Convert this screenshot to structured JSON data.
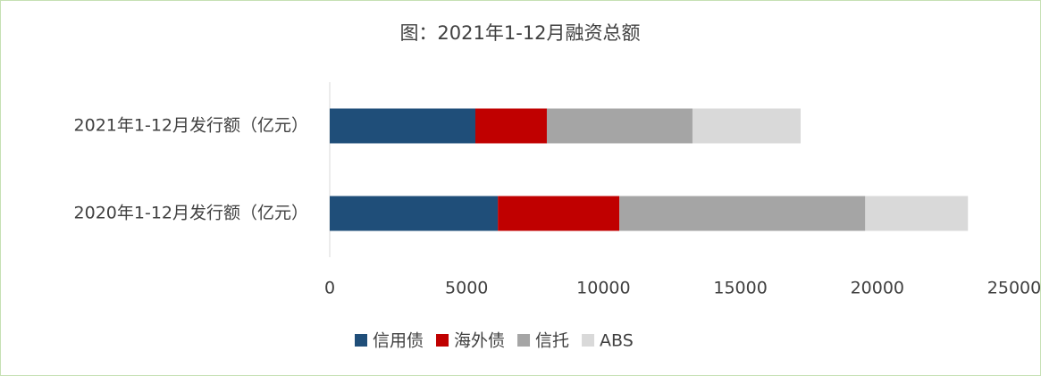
{
  "chart_data": {
    "type": "stacked-bar-horizontal",
    "title": "图：2021年1-12月融资总额",
    "categories": [
      "2021年1-12月发行额（亿元）",
      "2020年1-12月发行额（亿元）"
    ],
    "series": [
      {
        "name": "信用债",
        "color": "#1f4e79",
        "values": [
          5320,
          6140
        ]
      },
      {
        "name": "海外债",
        "color": "#c00000",
        "values": [
          2610,
          4440
        ]
      },
      {
        "name": "信托",
        "color": "#a5a5a5",
        "values": [
          5320,
          8980
        ]
      },
      {
        "name": "ABS",
        "color": "#d9d9d9",
        "values": [
          3950,
          3750
        ]
      }
    ],
    "xlim": [
      0,
      25000
    ],
    "xticks": [
      0,
      5000,
      10000,
      15000,
      20000,
      25000
    ],
    "grid": false,
    "legend": "bottom"
  }
}
